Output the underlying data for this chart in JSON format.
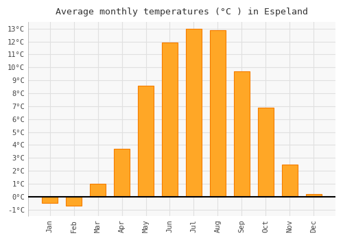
{
  "title": "Average monthly temperatures (°C ) in Espeland",
  "months": [
    "Jan",
    "Feb",
    "Mar",
    "Apr",
    "May",
    "Jun",
    "Jul",
    "Aug",
    "Sep",
    "Oct",
    "Nov",
    "Dec"
  ],
  "values": [
    -0.5,
    -0.7,
    1.0,
    3.7,
    8.6,
    11.9,
    13.0,
    12.9,
    9.7,
    6.9,
    2.5,
    0.2
  ],
  "bar_color": "#FFA726",
  "bar_edge_color": "#F57C00",
  "ylim": [
    -1.5,
    13.5
  ],
  "yticks": [
    -1,
    0,
    1,
    2,
    3,
    4,
    5,
    6,
    7,
    8,
    9,
    10,
    11,
    12,
    13
  ],
  "figure_bg": "#ffffff",
  "axes_bg": "#f8f8f8",
  "grid_color": "#e0e0e0",
  "title_fontsize": 9.5,
  "tick_fontsize": 7.5
}
